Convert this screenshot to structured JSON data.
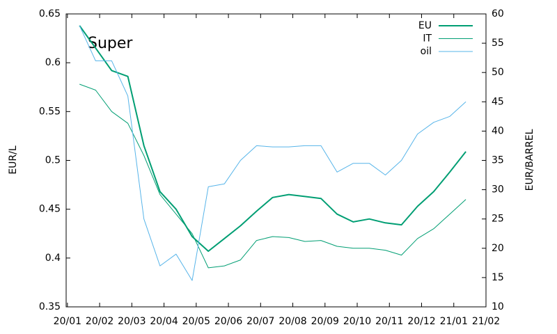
{
  "chart_data": {
    "type": "line",
    "annotation": "Super",
    "y_label": "EUR/L",
    "y2_label": "EUR/BARREL",
    "x": [
      0.375,
      0.875,
      1.375,
      1.875,
      2.375,
      2.875,
      3.375,
      3.875,
      4.375,
      4.875,
      5.375,
      5.875,
      6.375,
      6.875,
      7.375,
      7.875,
      8.375,
      8.875,
      9.375,
      9.875,
      10.375,
      10.875,
      11.375,
      11.875,
      12.375
    ],
    "series": [
      {
        "name": "EU",
        "color": "#009e73",
        "width": 2,
        "values": [
          0.638,
          0.615,
          0.592,
          0.586,
          0.515,
          0.468,
          0.45,
          0.422,
          0.407,
          0.42,
          0.433,
          0.448,
          0.462,
          0.465,
          0.463,
          0.461,
          0.445,
          0.437,
          0.44,
          0.436,
          0.434,
          0.453,
          0.468,
          0.488,
          0.509
        ]
      },
      {
        "name": "IT",
        "color": "#009e73",
        "width": 1,
        "values": [
          0.578,
          0.572,
          0.55,
          0.538,
          0.505,
          0.465,
          0.445,
          0.425,
          0.39,
          0.392,
          0.398,
          0.418,
          0.422,
          0.421,
          0.417,
          0.418,
          0.412,
          0.41,
          0.41,
          0.408,
          0.403,
          0.42,
          0.43,
          0.445,
          0.46
        ]
      },
      {
        "name": "oil",
        "color": "#56b4e9",
        "width": 1,
        "axis": "y2",
        "values": [
          58,
          52,
          52,
          46,
          25,
          17,
          19,
          14.5,
          30.5,
          31,
          35,
          37.5,
          37.3,
          37.3,
          37.5,
          37.5,
          33,
          34.5,
          34.5,
          32.5,
          35,
          39.5,
          41.5,
          42.5,
          45
        ]
      }
    ],
    "xlim": [
      -0.04,
      13
    ],
    "xticks": [
      {
        "value": 0,
        "label": "20/01"
      },
      {
        "value": 1,
        "label": "20/02"
      },
      {
        "value": 2,
        "label": "20/03"
      },
      {
        "value": 3,
        "label": "20/04"
      },
      {
        "value": 4,
        "label": "20/05"
      },
      {
        "value": 5,
        "label": "20/06"
      },
      {
        "value": 6,
        "label": "20/07"
      },
      {
        "value": 7,
        "label": "20/08"
      },
      {
        "value": 8,
        "label": "20/09"
      },
      {
        "value": 9,
        "label": "20/10"
      },
      {
        "value": 10,
        "label": "20/11"
      },
      {
        "value": 11,
        "label": "20/12"
      },
      {
        "value": 12,
        "label": "21/01"
      },
      {
        "value": 13,
        "label": "21/02"
      }
    ],
    "ylim": [
      0.35,
      0.65
    ],
    "yticks": [
      0.35,
      0.4,
      0.45,
      0.5,
      0.55,
      0.6,
      0.65
    ],
    "y2lim": [
      10,
      60
    ],
    "y2ticks": [
      10,
      15,
      20,
      25,
      30,
      35,
      40,
      45,
      50,
      55,
      60
    ],
    "legend": "top-right"
  }
}
